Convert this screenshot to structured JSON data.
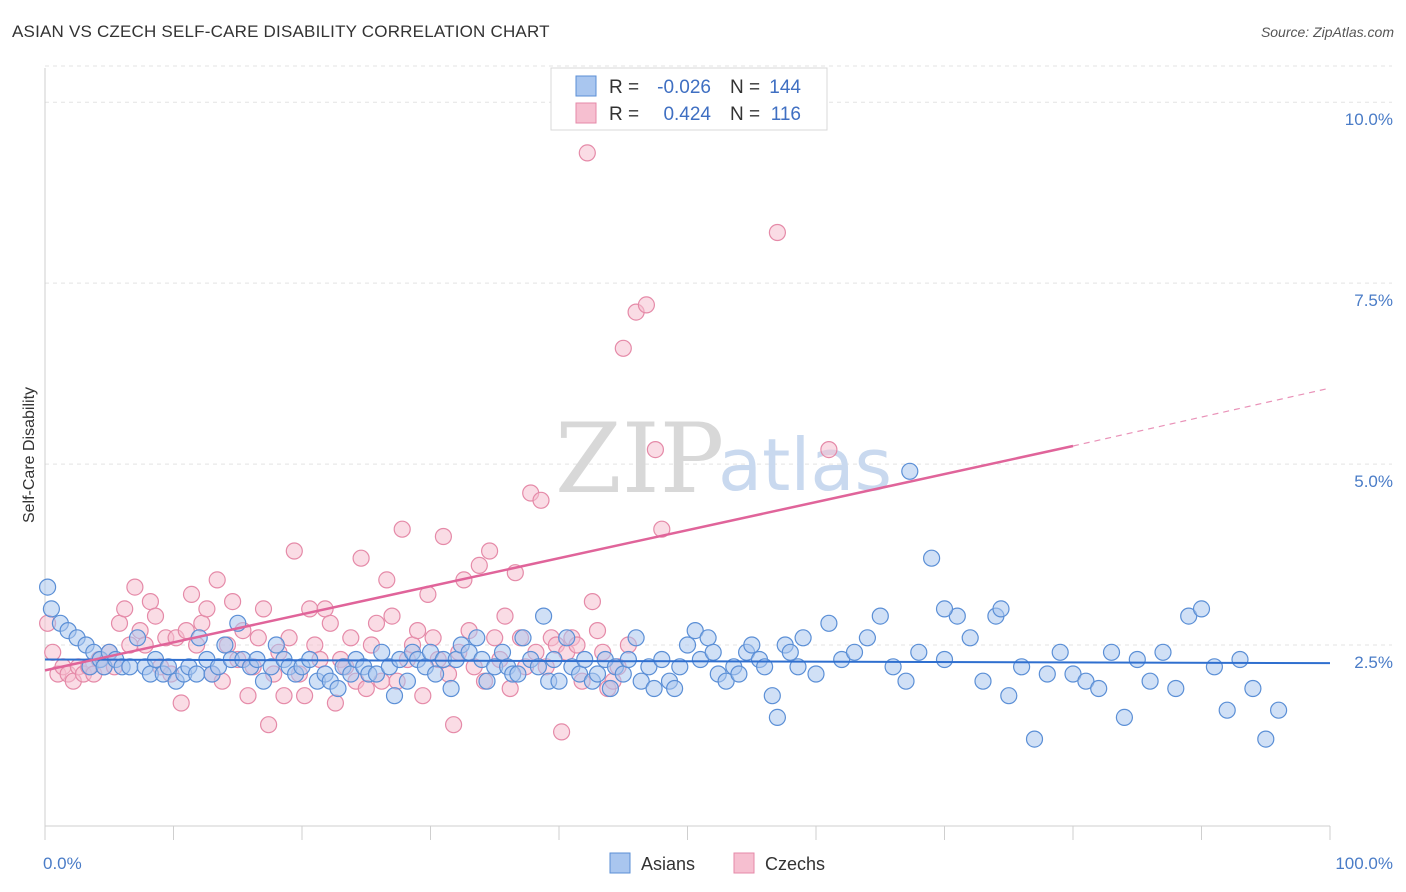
{
  "title": "ASIAN VS CZECH SELF-CARE DISABILITY CORRELATION CHART",
  "source": "Source: ZipAtlas.com",
  "watermark": {
    "zip": "ZIP",
    "atlas": "atlas"
  },
  "colors": {
    "asians_fill": "#a9c6ef",
    "asians_stroke": "#5b8fd6",
    "asians_line": "#2f6fcf",
    "czechs_fill": "#f6bfd0",
    "czechs_stroke": "#e58aa8",
    "czechs_line": "#e0649a",
    "tick_text": "#4a7cc7",
    "grid": "#e3e3e3"
  },
  "legend": {
    "rows": [
      {
        "r_label": "R =",
        "r_value": "-0.026",
        "n_label": "N =",
        "n_value": "144"
      },
      {
        "r_label": "R =",
        "r_value": "0.424",
        "n_label": "N =",
        "n_value": "116"
      }
    ]
  },
  "bottom_legend": {
    "asians": "Asians",
    "czechs": "Czechs"
  },
  "chart_data": {
    "type": "scatter",
    "title": "ASIAN VS CZECH SELF-CARE DISABILITY CORRELATION CHART",
    "xlabel": "",
    "ylabel": "Self-Care Disability",
    "xlim": [
      0,
      100
    ],
    "ylim": [
      0,
      10.5
    ],
    "x_tick_labels": [
      "0.0%",
      "100.0%"
    ],
    "y_ticks": [
      2.5,
      5.0,
      7.5,
      10.0
    ],
    "y_tick_labels": [
      "2.5%",
      "5.0%",
      "7.5%",
      "10.0%"
    ],
    "grid": true,
    "series": [
      {
        "name": "Asians",
        "r": -0.026,
        "n": 144,
        "trend": {
          "x0": 0,
          "y0": 2.3,
          "x1": 100,
          "y1": 2.25,
          "dashed_from": null
        },
        "points": [
          [
            0.2,
            3.3
          ],
          [
            0.5,
            3.0
          ],
          [
            1.2,
            2.8
          ],
          [
            1.8,
            2.7
          ],
          [
            2.5,
            2.6
          ],
          [
            3.2,
            2.5
          ],
          [
            3.5,
            2.2
          ],
          [
            3.8,
            2.4
          ],
          [
            4.3,
            2.3
          ],
          [
            4.6,
            2.2
          ],
          [
            5.0,
            2.4
          ],
          [
            5.5,
            2.3
          ],
          [
            6.0,
            2.2
          ],
          [
            6.6,
            2.2
          ],
          [
            7.2,
            2.6
          ],
          [
            7.8,
            2.2
          ],
          [
            8.2,
            2.1
          ],
          [
            8.6,
            2.3
          ],
          [
            9.2,
            2.1
          ],
          [
            9.6,
            2.2
          ],
          [
            10.2,
            2.0
          ],
          [
            10.8,
            2.1
          ],
          [
            11.2,
            2.2
          ],
          [
            11.8,
            2.1
          ],
          [
            12.0,
            2.6
          ],
          [
            12.6,
            2.3
          ],
          [
            13.0,
            2.1
          ],
          [
            13.5,
            2.2
          ],
          [
            14.0,
            2.5
          ],
          [
            14.5,
            2.3
          ],
          [
            15.0,
            2.8
          ],
          [
            15.4,
            2.3
          ],
          [
            16.0,
            2.2
          ],
          [
            16.5,
            2.3
          ],
          [
            17.0,
            2.0
          ],
          [
            17.6,
            2.2
          ],
          [
            18.0,
            2.5
          ],
          [
            18.6,
            2.3
          ],
          [
            19.0,
            2.2
          ],
          [
            19.5,
            2.1
          ],
          [
            20.0,
            2.2
          ],
          [
            20.6,
            2.3
          ],
          [
            21.2,
            2.0
          ],
          [
            21.8,
            2.1
          ],
          [
            22.2,
            2.0
          ],
          [
            22.8,
            1.9
          ],
          [
            23.2,
            2.2
          ],
          [
            23.8,
            2.1
          ],
          [
            24.2,
            2.3
          ],
          [
            24.8,
            2.2
          ],
          [
            25.2,
            2.1
          ],
          [
            25.8,
            2.1
          ],
          [
            26.2,
            2.4
          ],
          [
            26.8,
            2.2
          ],
          [
            27.2,
            1.8
          ],
          [
            27.6,
            2.3
          ],
          [
            28.2,
            2.0
          ],
          [
            28.6,
            2.4
          ],
          [
            29.0,
            2.3
          ],
          [
            29.6,
            2.2
          ],
          [
            30.0,
            2.4
          ],
          [
            30.4,
            2.1
          ],
          [
            31.0,
            2.3
          ],
          [
            31.6,
            1.9
          ],
          [
            32.0,
            2.3
          ],
          [
            32.4,
            2.5
          ],
          [
            33.0,
            2.4
          ],
          [
            33.6,
            2.6
          ],
          [
            34.0,
            2.3
          ],
          [
            34.4,
            2.0
          ],
          [
            35.0,
            2.2
          ],
          [
            35.6,
            2.4
          ],
          [
            36.0,
            2.2
          ],
          [
            36.4,
            2.1
          ],
          [
            36.8,
            2.1
          ],
          [
            37.2,
            2.6
          ],
          [
            37.8,
            2.3
          ],
          [
            38.4,
            2.2
          ],
          [
            38.8,
            2.9
          ],
          [
            39.2,
            2.0
          ],
          [
            39.6,
            2.3
          ],
          [
            40.0,
            2.0
          ],
          [
            40.6,
            2.6
          ],
          [
            41.0,
            2.2
          ],
          [
            41.6,
            2.1
          ],
          [
            42.0,
            2.3
          ],
          [
            42.6,
            2.0
          ],
          [
            43.0,
            2.1
          ],
          [
            43.6,
            2.3
          ],
          [
            44.0,
            1.9
          ],
          [
            44.4,
            2.2
          ],
          [
            45.0,
            2.1
          ],
          [
            45.4,
            2.3
          ],
          [
            46.0,
            2.6
          ],
          [
            46.4,
            2.0
          ],
          [
            47.0,
            2.2
          ],
          [
            47.4,
            1.9
          ],
          [
            48.0,
            2.3
          ],
          [
            48.6,
            2.0
          ],
          [
            49.0,
            1.9
          ],
          [
            49.4,
            2.2
          ],
          [
            50.0,
            2.5
          ],
          [
            50.6,
            2.7
          ],
          [
            51.0,
            2.3
          ],
          [
            51.6,
            2.6
          ],
          [
            52.0,
            2.4
          ],
          [
            52.4,
            2.1
          ],
          [
            53.0,
            2.0
          ],
          [
            53.6,
            2.2
          ],
          [
            54.0,
            2.1
          ],
          [
            54.6,
            2.4
          ],
          [
            55.0,
            2.5
          ],
          [
            55.6,
            2.3
          ],
          [
            56.0,
            2.2
          ],
          [
            56.6,
            1.8
          ],
          [
            57.0,
            1.5
          ],
          [
            57.6,
            2.5
          ],
          [
            58.0,
            2.4
          ],
          [
            58.6,
            2.2
          ],
          [
            59.0,
            2.6
          ],
          [
            60.0,
            2.1
          ],
          [
            61.0,
            2.8
          ],
          [
            62.0,
            2.3
          ],
          [
            63.0,
            2.4
          ],
          [
            64.0,
            2.6
          ],
          [
            65.0,
            2.9
          ],
          [
            66.0,
            2.2
          ],
          [
            67.0,
            2.0
          ],
          [
            68.0,
            2.4
          ],
          [
            69.0,
            3.7
          ],
          [
            70.0,
            2.3
          ],
          [
            71.0,
            2.9
          ],
          [
            72.0,
            2.6
          ],
          [
            73.0,
            2.0
          ],
          [
            74.0,
            2.9
          ],
          [
            75.0,
            1.8
          ],
          [
            76.0,
            2.2
          ],
          [
            77.0,
            1.2
          ],
          [
            78.0,
            2.1
          ],
          [
            79.0,
            2.4
          ],
          [
            80.0,
            2.1
          ],
          [
            81.0,
            2.0
          ],
          [
            82.0,
            1.9
          ],
          [
            83.0,
            2.4
          ],
          [
            84.0,
            1.5
          ],
          [
            85.0,
            2.3
          ],
          [
            86.0,
            2.0
          ],
          [
            87.0,
            2.4
          ],
          [
            88.0,
            1.9
          ],
          [
            89.0,
            2.9
          ],
          [
            90.0,
            3.0
          ],
          [
            91.0,
            2.2
          ],
          [
            92.0,
            1.6
          ],
          [
            93.0,
            2.3
          ],
          [
            94.0,
            1.9
          ],
          [
            95.0,
            1.2
          ],
          [
            96.0,
            1.6
          ],
          [
            67.3,
            4.9
          ],
          [
            70.0,
            3.0
          ],
          [
            74.4,
            3.0
          ]
        ]
      },
      {
        "name": "Czechs",
        "r": 0.424,
        "n": 116,
        "trend": {
          "x0": 0,
          "y0": 2.15,
          "x1": 80,
          "y1": 5.25,
          "dashed_to_x": 100,
          "dashed_to_y": 6.05
        },
        "points": [
          [
            0.2,
            2.8
          ],
          [
            0.6,
            2.4
          ],
          [
            1.0,
            2.1
          ],
          [
            1.4,
            2.2
          ],
          [
            1.8,
            2.1
          ],
          [
            2.2,
            2.0
          ],
          [
            2.6,
            2.2
          ],
          [
            3.0,
            2.1
          ],
          [
            3.4,
            2.2
          ],
          [
            3.8,
            2.1
          ],
          [
            4.2,
            2.3
          ],
          [
            4.6,
            2.2
          ],
          [
            5.0,
            2.4
          ],
          [
            5.4,
            2.2
          ],
          [
            5.8,
            2.8
          ],
          [
            6.2,
            3.0
          ],
          [
            6.6,
            2.5
          ],
          [
            7.0,
            3.3
          ],
          [
            7.4,
            2.7
          ],
          [
            7.8,
            2.5
          ],
          [
            8.2,
            3.1
          ],
          [
            8.6,
            2.9
          ],
          [
            9.0,
            2.2
          ],
          [
            9.4,
            2.6
          ],
          [
            9.8,
            2.1
          ],
          [
            10.2,
            2.6
          ],
          [
            10.6,
            1.7
          ],
          [
            11.0,
            2.7
          ],
          [
            11.4,
            3.2
          ],
          [
            11.8,
            2.5
          ],
          [
            12.2,
            2.8
          ],
          [
            12.6,
            3.0
          ],
          [
            13.0,
            2.1
          ],
          [
            13.4,
            3.4
          ],
          [
            13.8,
            2.0
          ],
          [
            14.2,
            2.5
          ],
          [
            14.6,
            3.1
          ],
          [
            15.0,
            2.3
          ],
          [
            15.4,
            2.7
          ],
          [
            15.8,
            1.8
          ],
          [
            16.2,
            2.2
          ],
          [
            16.6,
            2.6
          ],
          [
            17.0,
            3.0
          ],
          [
            17.4,
            1.4
          ],
          [
            17.8,
            2.1
          ],
          [
            18.2,
            2.4
          ],
          [
            18.6,
            1.8
          ],
          [
            19.0,
            2.6
          ],
          [
            19.4,
            3.8
          ],
          [
            19.8,
            2.1
          ],
          [
            20.2,
            1.8
          ],
          [
            20.6,
            3.0
          ],
          [
            21.0,
            2.5
          ],
          [
            21.4,
            2.3
          ],
          [
            21.8,
            3.0
          ],
          [
            22.2,
            2.8
          ],
          [
            22.6,
            1.7
          ],
          [
            23.0,
            2.3
          ],
          [
            23.4,
            2.2
          ],
          [
            23.8,
            2.6
          ],
          [
            24.2,
            2.0
          ],
          [
            24.6,
            3.7
          ],
          [
            25.0,
            1.9
          ],
          [
            25.4,
            2.5
          ],
          [
            25.8,
            2.8
          ],
          [
            26.2,
            2.0
          ],
          [
            26.6,
            3.4
          ],
          [
            27.0,
            2.9
          ],
          [
            27.4,
            2.0
          ],
          [
            27.8,
            4.1
          ],
          [
            28.2,
            2.3
          ],
          [
            28.6,
            2.5
          ],
          [
            29.0,
            2.7
          ],
          [
            29.4,
            1.8
          ],
          [
            29.8,
            3.2
          ],
          [
            30.2,
            2.6
          ],
          [
            30.6,
            2.3
          ],
          [
            31.0,
            4.0
          ],
          [
            31.4,
            2.1
          ],
          [
            31.8,
            1.4
          ],
          [
            32.2,
            2.4
          ],
          [
            32.6,
            3.4
          ],
          [
            33.0,
            2.7
          ],
          [
            33.4,
            2.2
          ],
          [
            33.8,
            3.6
          ],
          [
            34.2,
            2.0
          ],
          [
            34.6,
            3.8
          ],
          [
            35.0,
            2.6
          ],
          [
            35.4,
            2.3
          ],
          [
            35.8,
            2.9
          ],
          [
            36.2,
            1.9
          ],
          [
            36.6,
            3.5
          ],
          [
            37.0,
            2.6
          ],
          [
            37.4,
            2.2
          ],
          [
            37.8,
            4.6
          ],
          [
            38.2,
            2.4
          ],
          [
            38.6,
            4.5
          ],
          [
            39.0,
            2.2
          ],
          [
            39.4,
            2.6
          ],
          [
            39.8,
            2.5
          ],
          [
            40.2,
            1.3
          ],
          [
            40.6,
            2.4
          ],
          [
            41.0,
            2.6
          ],
          [
            41.4,
            2.5
          ],
          [
            41.8,
            2.0
          ],
          [
            42.2,
            9.3
          ],
          [
            42.6,
            3.1
          ],
          [
            43.0,
            2.7
          ],
          [
            43.4,
            2.4
          ],
          [
            43.8,
            1.9
          ],
          [
            44.2,
            2.0
          ],
          [
            44.6,
            2.2
          ],
          [
            45.0,
            6.6
          ],
          [
            45.4,
            2.5
          ],
          [
            46.0,
            7.1
          ],
          [
            46.8,
            7.2
          ],
          [
            47.5,
            5.2
          ],
          [
            48.0,
            4.1
          ],
          [
            57.0,
            8.2
          ],
          [
            61.0,
            5.2
          ]
        ]
      }
    ]
  }
}
